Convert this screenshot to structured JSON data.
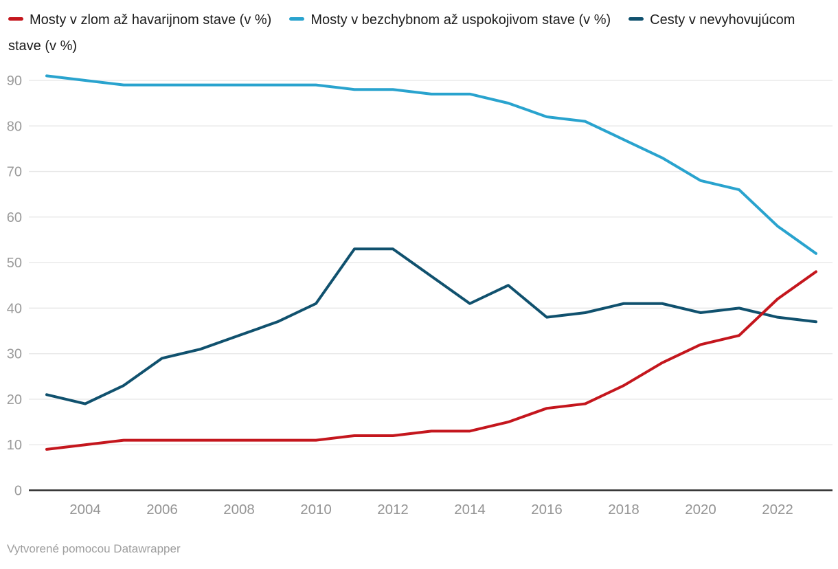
{
  "legend": {
    "items": [
      {
        "label": "Mosty v zlom až havarijnom stave (v %)",
        "color": "#c4161d"
      },
      {
        "label": "Mosty v bezchybnom až uspokojivom stave (v %)",
        "color": "#29a3ce"
      },
      {
        "label": "Cesty v nevyhovujúcom stave (v %)",
        "color": "#10516e"
      }
    ]
  },
  "footer": {
    "text": "Vytvorené pomocou Datawrapper"
  },
  "chart_data": {
    "type": "line",
    "x": [
      2003,
      2004,
      2005,
      2006,
      2007,
      2008,
      2009,
      2010,
      2011,
      2012,
      2013,
      2014,
      2015,
      2016,
      2017,
      2018,
      2019,
      2020,
      2021,
      2022,
      2023
    ],
    "series": [
      {
        "name": "Mosty v zlom až havarijnom stave (v %)",
        "color": "#c4161d",
        "values": [
          9,
          10,
          11,
          11,
          11,
          11,
          11,
          11,
          12,
          12,
          13,
          13,
          15,
          18,
          19,
          23,
          28,
          32,
          34,
          42,
          48
        ]
      },
      {
        "name": "Mosty v bezchybnom až uspokojivom stave (v %)",
        "color": "#29a3ce",
        "values": [
          91,
          90,
          89,
          89,
          89,
          89,
          89,
          89,
          88,
          88,
          87,
          87,
          85,
          82,
          81,
          77,
          73,
          68,
          66,
          58,
          52
        ]
      },
      {
        "name": "Cesty v nevyhovujúcom stave (v %)",
        "color": "#10516e",
        "values": [
          21,
          19,
          23,
          29,
          31,
          34,
          37,
          41,
          53,
          53,
          47,
          41,
          45,
          38,
          39,
          41,
          41,
          39,
          40,
          38,
          37
        ]
      }
    ],
    "ylim": [
      0,
      90
    ],
    "y_ticks": [
      0,
      10,
      20,
      30,
      40,
      50,
      60,
      70,
      80,
      90
    ],
    "x_tick_labels": [
      2004,
      2006,
      2008,
      2010,
      2012,
      2014,
      2016,
      2018,
      2020,
      2022
    ],
    "grid": "horizontal",
    "legend_position": "top",
    "title": "",
    "xlabel": "",
    "ylabel": ""
  }
}
